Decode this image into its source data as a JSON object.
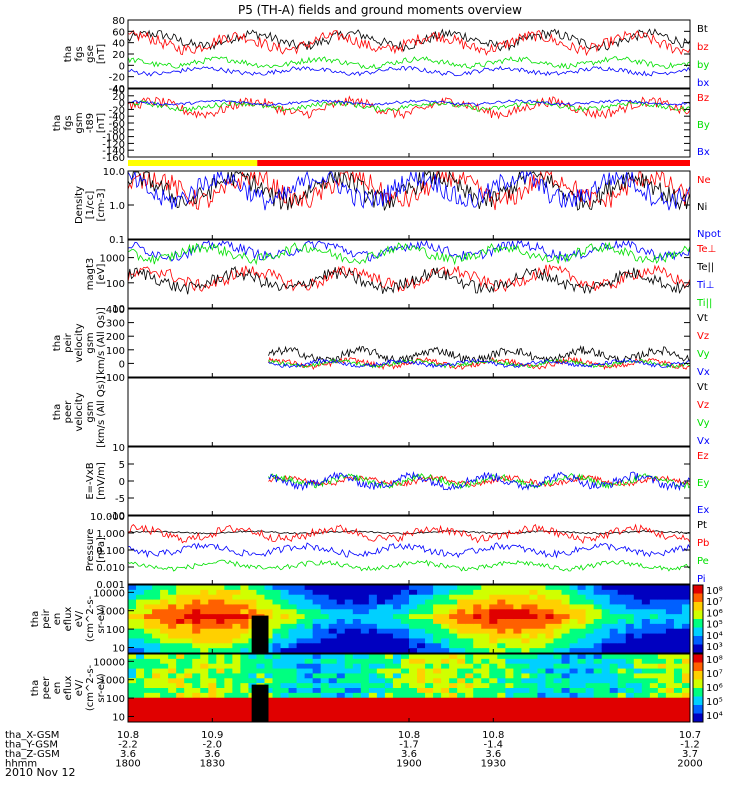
{
  "title": "P5 (TH-A) fields and ground moments overview",
  "date": "2010 Nov 12",
  "colors": {
    "black": "#000000",
    "red": "#ff0000",
    "green": "#00e000",
    "blue": "#0000ff",
    "yellow": "#ffff00",
    "frame": "#000000"
  },
  "mode_bar": {
    "segments": [
      {
        "from": 1800,
        "to": 1846,
        "color": "yellow"
      },
      {
        "from": 1846,
        "to": 2000,
        "color": "red"
      }
    ]
  },
  "chart_data": [
    {
      "type": "line",
      "id": "fgs-gse",
      "ylabel": [
        "tha",
        "fgs",
        "gse",
        "[nT]"
      ],
      "ylim": [
        -40,
        80
      ],
      "yticks": [
        "80",
        "60",
        "40",
        "20",
        "0",
        "-20",
        "-40"
      ],
      "series": [
        {
          "name": "Bt",
          "color": "black",
          "level": 45,
          "spread": 18
        },
        {
          "name": "bz",
          "color": "red",
          "level": 40,
          "spread": 20
        },
        {
          "name": "by",
          "color": "green",
          "level": 5,
          "spread": 10
        },
        {
          "name": "bx",
          "color": "blue",
          "level": -10,
          "spread": 8
        }
      ]
    },
    {
      "type": "line",
      "id": "fgs-gsm-t89",
      "ylabel": [
        "tha",
        "fgs",
        "gsm",
        "-t89",
        "[nT]"
      ],
      "ylim": [
        -160,
        40
      ],
      "yticks": [
        "40",
        "20",
        "0",
        "-20",
        "-40",
        "-60",
        "-80",
        "-100",
        "-120",
        "-140",
        "-160"
      ],
      "series": [
        {
          "name": "Bz",
          "color": "red",
          "level": -15,
          "spread": 30
        },
        {
          "name": "By",
          "color": "green",
          "level": -10,
          "spread": 15
        },
        {
          "name": "Bx",
          "color": "blue",
          "level": 0,
          "spread": 8
        }
      ]
    },
    {
      "type": "line",
      "id": "density",
      "scale": "log",
      "ylabel": [
        "Density",
        "[1/cc]",
        "[cm-3]"
      ],
      "ylim": [
        0.1,
        10
      ],
      "yticks": [
        "10.0",
        "1.0",
        "0.1"
      ],
      "series": [
        {
          "name": "Ne",
          "color": "red",
          "level": 3,
          "spread": 0.6
        },
        {
          "name": "Ni",
          "color": "black",
          "level": 3,
          "spread": 0.6
        },
        {
          "name": "Npot",
          "color": "blue",
          "level": 3,
          "spread": 0.6
        }
      ]
    },
    {
      "type": "line",
      "id": "temperature",
      "scale": "log",
      "ylabel": [
        "magt3",
        "[eV]"
      ],
      "ylim": [
        10,
        5000
      ],
      "yticks": [
        "1000",
        "100",
        "10"
      ],
      "series": [
        {
          "name": "Te⊥",
          "color": "red",
          "level": 150,
          "spread": 0.5
        },
        {
          "name": "Te||",
          "color": "black",
          "level": 120,
          "spread": 0.5
        },
        {
          "name": "Ti⊥",
          "color": "blue",
          "level": 2000,
          "spread": 0.4
        },
        {
          "name": "Ti||",
          "color": "green",
          "level": 1500,
          "spread": 0.4
        }
      ]
    },
    {
      "type": "line",
      "id": "peir-velocity",
      "ylabel": [
        "tha",
        "peir",
        "velocity",
        "gsm",
        "[km/s (All Qs)]"
      ],
      "ylim": [
        -100,
        400
      ],
      "yticks": [
        "400",
        "300",
        "200",
        "100",
        "0",
        "-100"
      ],
      "start": 1850,
      "series": [
        {
          "name": "Vt",
          "color": "black",
          "level": 60,
          "spread": 60
        },
        {
          "name": "Vz",
          "color": "red",
          "level": 0,
          "spread": 40
        },
        {
          "name": "Vy",
          "color": "green",
          "level": 0,
          "spread": 30
        },
        {
          "name": "Vx",
          "color": "blue",
          "level": 0,
          "spread": 30
        }
      ]
    },
    {
      "type": "line",
      "id": "peer-velocity",
      "ylabel": [
        "tha",
        "peer",
        "velocity",
        "gsm",
        "[km/s (All Qs)]"
      ],
      "series": [
        {
          "name": "Vt",
          "color": "black"
        },
        {
          "name": "Vz",
          "color": "red"
        },
        {
          "name": "Vy",
          "color": "green"
        },
        {
          "name": "Vx",
          "color": "blue"
        }
      ]
    },
    {
      "type": "line",
      "id": "efield",
      "ylabel": [
        "E=-VxB",
        "[mV/m]"
      ],
      "ylim": [
        -10,
        10
      ],
      "yticks": [
        "10",
        "5",
        "0",
        "-5",
        "-10"
      ],
      "start": 1850,
      "series": [
        {
          "name": "Ez",
          "color": "red",
          "level": 0,
          "spread": 1.5
        },
        {
          "name": "Ey",
          "color": "green",
          "level": 0,
          "spread": 2
        },
        {
          "name": "Ex",
          "color": "blue",
          "level": 0,
          "spread": 2.5
        }
      ]
    },
    {
      "type": "line",
      "id": "pressure",
      "scale": "log",
      "ylabel": [
        "Pressure",
        "[nPa]"
      ],
      "ylim": [
        0.001,
        10
      ],
      "yticks": [
        "10.000",
        "1.000",
        "0.100",
        "0.010",
        "0.001"
      ],
      "series": [
        {
          "name": "Pt",
          "color": "black",
          "level": 1.1,
          "spread": 0.1
        },
        {
          "name": "Pb",
          "color": "red",
          "level": 0.9,
          "spread": 0.5
        },
        {
          "name": "Pe",
          "color": "green",
          "level": 0.012,
          "spread": 0.3
        },
        {
          "name": "Pi",
          "color": "blue",
          "level": 0.1,
          "spread": 0.4
        }
      ]
    },
    {
      "type": "heatmap",
      "id": "peir-eflux",
      "ylabel": [
        "tha",
        "peir",
        "en",
        "eflux",
        "eV/",
        "(cm^2-s-",
        "sr-eV)"
      ],
      "yticks": [
        "10000",
        "1000",
        "100",
        "10"
      ],
      "ylim": [
        5,
        25000
      ],
      "colorbar_ticks": [
        "10⁸",
        "10⁷",
        "10⁶",
        "10⁵",
        "10⁴",
        "10³"
      ]
    },
    {
      "type": "heatmap",
      "id": "peer-eflux",
      "ylabel": [
        "tha",
        "peer",
        "en",
        "eflux",
        "eV/",
        "(cm^2-s-",
        "sr-eV)"
      ],
      "yticks": [
        "10000",
        "1000",
        "100",
        "10"
      ],
      "ylim": [
        5,
        25000
      ],
      "colorbar_ticks": [
        "10⁸",
        "10⁷",
        "10⁶",
        "10⁵",
        "10⁴"
      ]
    }
  ],
  "x_axis": {
    "range": [
      1800,
      2000
    ],
    "tick_times": [
      1800,
      1830,
      1900,
      1930,
      2000
    ],
    "rows": [
      {
        "label": "tha_X-GSM",
        "values": [
          "10.8",
          "10.9",
          "10.8",
          "10.8",
          "10.7"
        ]
      },
      {
        "label": "tha_Y-GSM",
        "values": [
          "-2.2",
          "-2.0",
          "-1.7",
          "-1.4",
          "-1.2"
        ]
      },
      {
        "label": "tha_Z-GSM",
        "values": [
          "3.6",
          "3.6",
          "3.6",
          "3.6",
          "3.7"
        ]
      },
      {
        "label": "hhmm",
        "values": [
          "1800",
          "1830",
          "1900",
          "1930",
          "2000"
        ]
      }
    ]
  }
}
